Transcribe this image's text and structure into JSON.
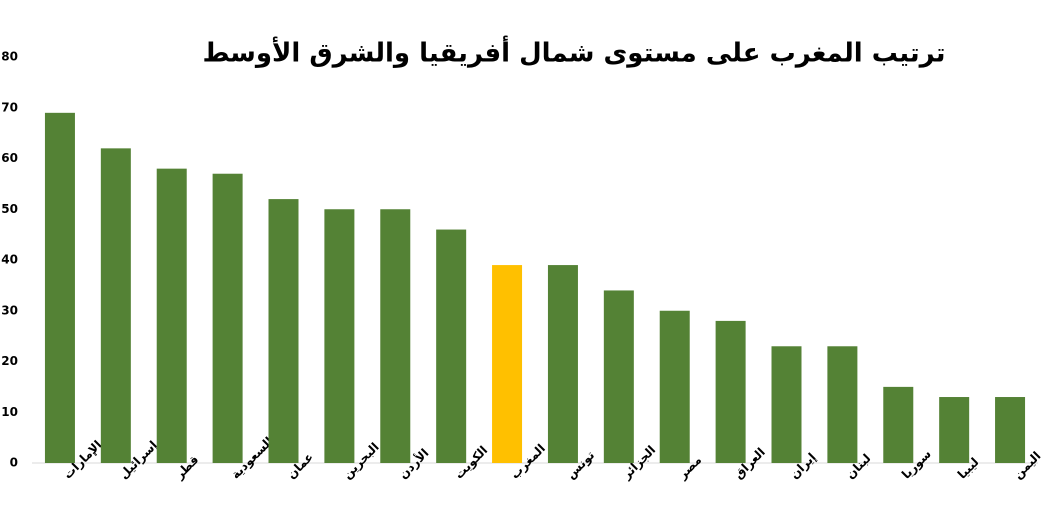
{
  "chart_data": {
    "type": "bar",
    "title": "ترتيب المغرب على مستوى شمال أفريقيا والشرق الأوسط",
    "categories": [
      "الإمارات",
      "إسرائيل",
      "قطر",
      "السعودية",
      "عمان",
      "البحرين",
      "الأردن",
      "الكويت",
      "المغرب",
      "تونس",
      "الجزائر",
      "مصر",
      "العراق",
      "إيران",
      "لبنان",
      "سوريا",
      "ليبيا",
      "اليمن"
    ],
    "values": [
      69,
      62,
      58,
      57,
      52,
      50,
      50,
      46,
      39,
      39,
      34,
      30,
      28,
      23,
      23,
      15,
      13,
      13
    ],
    "colors": [
      "#548235",
      "#548235",
      "#548235",
      "#548235",
      "#548235",
      "#548235",
      "#548235",
      "#548235",
      "#ffc000",
      "#548235",
      "#548235",
      "#548235",
      "#548235",
      "#548235",
      "#548235",
      "#548235",
      "#548235",
      "#548235"
    ],
    "ylim": [
      0,
      80
    ],
    "yticks": [
      0,
      10,
      20,
      30,
      40,
      50,
      60,
      70,
      80
    ],
    "grid": false
  }
}
